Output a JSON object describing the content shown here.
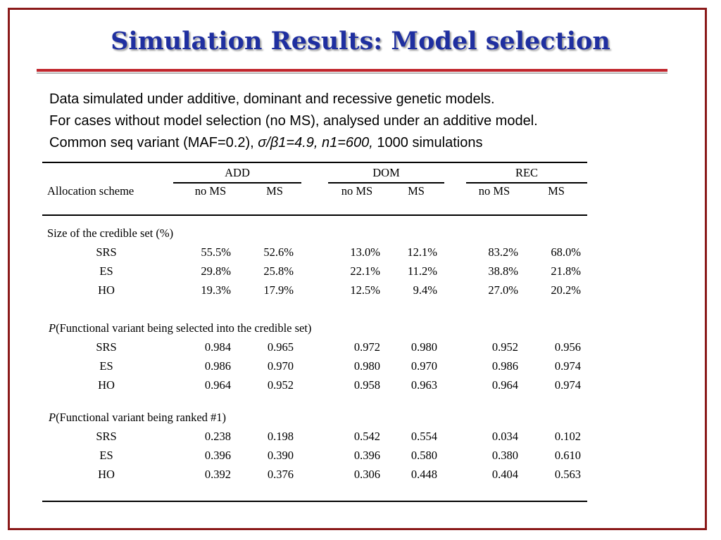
{
  "title": "Simulation Results:  Model selection",
  "intro": {
    "line1": "Data simulated under additive, dominant and recessive genetic models.",
    "line2": "For cases without model selection (no MS), analysed under an additive model.",
    "line3_prefix": "Common seq variant (MAF=0.2), ",
    "line3_italic": "σ/β1=4.9, n1=600,",
    "line3_suffix": " 1000 simulations"
  },
  "table": {
    "row_header": "Allocation scheme",
    "groups": [
      "ADD",
      "DOM",
      "REC"
    ],
    "subcols": [
      "no MS",
      "MS",
      "no MS",
      "MS",
      "no MS",
      "MS"
    ],
    "sections": [
      {
        "heading_prefix": "",
        "heading_text": "Size of the credible set (%)",
        "rows": [
          {
            "label": "SRS",
            "values": [
              "55.5%",
              "52.6%",
              "13.0%",
              "12.1%",
              "83.2%",
              "68.0%"
            ]
          },
          {
            "label": "ES",
            "values": [
              "29.8%",
              "25.8%",
              "22.1%",
              "11.2%",
              "38.8%",
              "21.8%"
            ]
          },
          {
            "label": "HO",
            "values": [
              "19.3%",
              "17.9%",
              "12.5%",
              "9.4%",
              "27.0%",
              "20.2%"
            ]
          }
        ]
      },
      {
        "heading_prefix": "P",
        "heading_text": "(Functional variant being selected into the credible set)",
        "rows": [
          {
            "label": "SRS",
            "values": [
              "0.984",
              "0.965",
              "0.972",
              "0.980",
              "0.952",
              "0.956"
            ]
          },
          {
            "label": "ES",
            "values": [
              "0.986",
              "0.970",
              "0.980",
              "0.970",
              "0.986",
              "0.974"
            ]
          },
          {
            "label": "HO",
            "values": [
              "0.964",
              "0.952",
              "0.958",
              "0.963",
              "0.964",
              "0.974"
            ]
          }
        ]
      },
      {
        "heading_prefix": "P",
        "heading_text": "(Functional variant being ranked #1)",
        "rows": [
          {
            "label": "SRS",
            "values": [
              "0.238",
              "0.198",
              "0.542",
              "0.554",
              "0.034",
              "0.102"
            ]
          },
          {
            "label": "ES",
            "values": [
              "0.396",
              "0.390",
              "0.396",
              "0.580",
              "0.380",
              "0.610"
            ]
          },
          {
            "label": "HO",
            "values": [
              "0.392",
              "0.376",
              "0.306",
              "0.448",
              "0.404",
              "0.563"
            ]
          }
        ]
      }
    ]
  }
}
